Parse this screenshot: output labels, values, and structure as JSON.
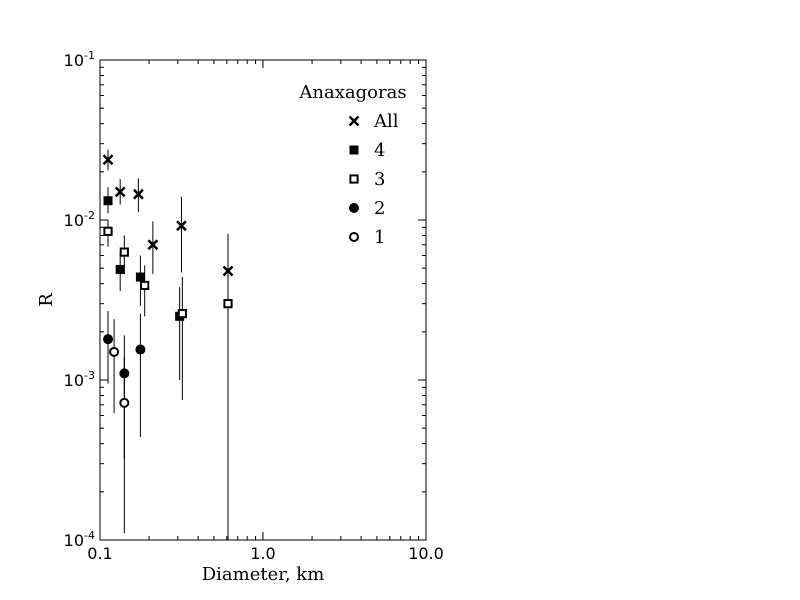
{
  "chart_data": {
    "type": "scatter",
    "title": "",
    "xlabel": "Diameter, km",
    "ylabel": "R",
    "x_scale": "log",
    "y_scale": "log",
    "xlim": [
      0.1,
      10.0
    ],
    "ylim": [
      0.0001,
      0.1
    ],
    "x_ticks": [
      {
        "value": 0.1,
        "label": "0.1"
      },
      {
        "value": 1.0,
        "label": "1.0"
      },
      {
        "value": 10.0,
        "label": "10.0"
      }
    ],
    "y_ticks": [
      {
        "value": 0.0001,
        "base": "10",
        "exp": "-4"
      },
      {
        "value": 0.001,
        "base": "10",
        "exp": "-3"
      },
      {
        "value": 0.01,
        "base": "10",
        "exp": "-2"
      },
      {
        "value": 0.1,
        "base": "10",
        "exp": "-1"
      }
    ],
    "grid": false,
    "legend": {
      "title": "Anaxagoras",
      "placement": "top-right"
    },
    "series": [
      {
        "name": "All",
        "marker": "x",
        "points": [
          {
            "x": 0.112,
            "y": 0.0238,
            "lo": 0.0205,
            "hi": 0.0275
          },
          {
            "x": 0.133,
            "y": 0.015,
            "lo": 0.0125,
            "hi": 0.018
          },
          {
            "x": 0.172,
            "y": 0.0145,
            "lo": 0.0112,
            "hi": 0.0182
          },
          {
            "x": 0.211,
            "y": 0.007,
            "lo": 0.0046,
            "hi": 0.0098
          },
          {
            "x": 0.316,
            "y": 0.0092,
            "lo": 0.0047,
            "hi": 0.014
          },
          {
            "x": 0.61,
            "y": 0.0048,
            "lo": 0.0014,
            "hi": 0.0082
          }
        ]
      },
      {
        "name": "4",
        "marker": "filled-square",
        "points": [
          {
            "x": 0.112,
            "y": 0.0132,
            "lo": 0.011,
            "hi": 0.016
          },
          {
            "x": 0.133,
            "y": 0.0049,
            "lo": 0.0036,
            "hi": 0.0063
          },
          {
            "x": 0.177,
            "y": 0.0044,
            "lo": 0.0029,
            "hi": 0.006
          },
          {
            "x": 0.308,
            "y": 0.0025,
            "lo": 0.001,
            "hi": 0.0038
          }
        ]
      },
      {
        "name": "3",
        "marker": "open-square",
        "points": [
          {
            "x": 0.112,
            "y": 0.0085,
            "lo": 0.0068,
            "hi": 0.01
          },
          {
            "x": 0.141,
            "y": 0.0063,
            "lo": 0.0046,
            "hi": 0.008
          },
          {
            "x": 0.188,
            "y": 0.0039,
            "lo": 0.0025,
            "hi": 0.0052
          },
          {
            "x": 0.32,
            "y": 0.0026,
            "lo": 0.00075,
            "hi": 0.0044
          },
          {
            "x": 0.61,
            "y": 0.003,
            "lo": 0.0001,
            "hi": 0.0058
          }
        ]
      },
      {
        "name": "2",
        "marker": "filled-circle",
        "points": [
          {
            "x": 0.112,
            "y": 0.0018,
            "lo": 0.00095,
            "hi": 0.0027
          },
          {
            "x": 0.141,
            "y": 0.0011,
            "lo": 0.00032,
            "hi": 0.0019
          },
          {
            "x": 0.177,
            "y": 0.00155,
            "lo": 0.00044,
            "hi": 0.0026
          }
        ]
      },
      {
        "name": "1",
        "marker": "open-circle",
        "points": [
          {
            "x": 0.122,
            "y": 0.0015,
            "lo": 0.00062,
            "hi": 0.0024
          },
          {
            "x": 0.141,
            "y": 0.00072,
            "lo": 0.00011,
            "hi": 0.0014
          }
        ]
      }
    ]
  }
}
